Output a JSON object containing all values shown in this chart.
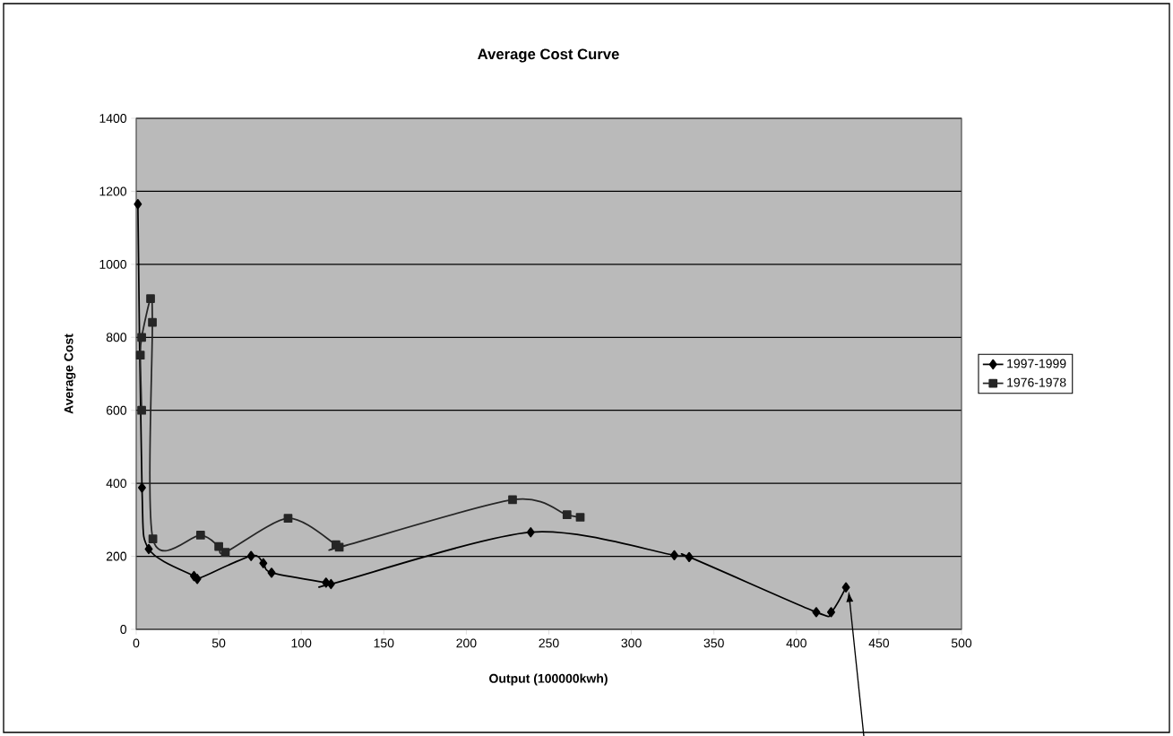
{
  "chart_data": {
    "type": "line",
    "title": "Average Cost Curve",
    "xlabel": "Output (100000kwh)",
    "ylabel": "Average Cost",
    "xlim": [
      0,
      500
    ],
    "ylim": [
      0,
      1400
    ],
    "xticks": [
      0,
      50,
      100,
      150,
      200,
      250,
      300,
      350,
      400,
      450,
      500
    ],
    "yticks": [
      0,
      200,
      400,
      600,
      800,
      1000,
      1200,
      1400
    ],
    "grid": "y",
    "legend": "right",
    "series": [
      {
        "name": "1997-1999",
        "color": "#000000",
        "marker": "diamond",
        "x": [
          1,
          3.5,
          7.6,
          35,
          37,
          69.6,
          77,
          82,
          115,
          118,
          239,
          326,
          335,
          412,
          421,
          430
        ],
        "values": [
          1165,
          388,
          220,
          146,
          138,
          201,
          181,
          155,
          128,
          124,
          266,
          203,
          198,
          47,
          47,
          115
        ]
      },
      {
        "name": "1976-1978",
        "color": "#262626",
        "marker": "square",
        "x": [
          3.3,
          2.5,
          3.3,
          8.7,
          9.8,
          10.1,
          39,
          50,
          54,
          92,
          121,
          123,
          228,
          261,
          269
        ],
        "values": [
          600,
          751,
          800,
          906,
          841,
          248,
          258,
          227,
          211,
          304,
          232,
          225,
          355,
          314,
          307
        ]
      }
    ]
  }
}
